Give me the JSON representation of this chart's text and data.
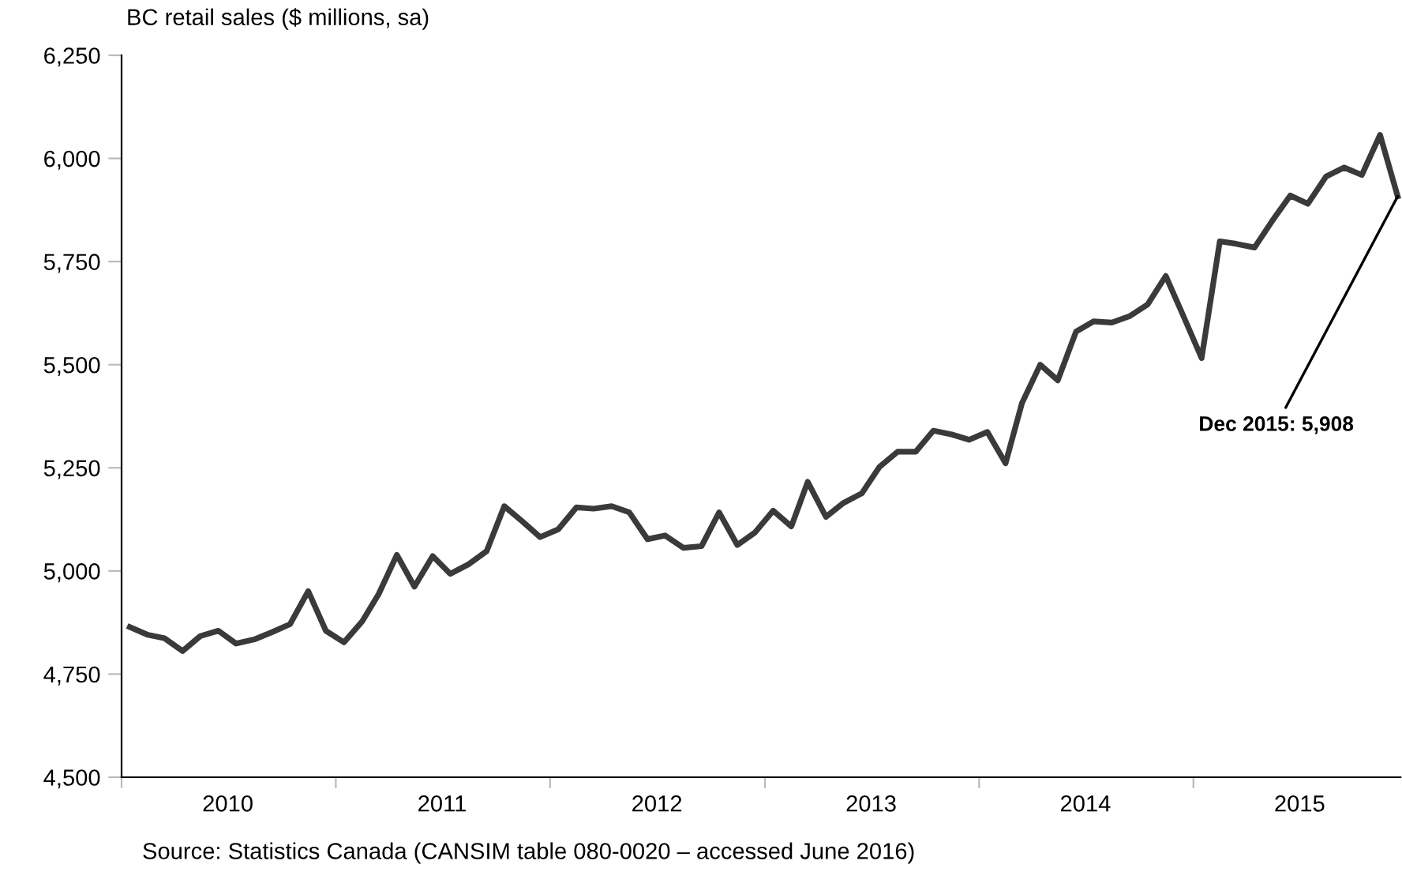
{
  "chart_data": {
    "type": "line",
    "ylabel": "BC retail sales ($ millions, sa)",
    "x": [
      "2010-01-15",
      "2010-02-15",
      "2010-03-15",
      "2010-04-15",
      "2010-05-15",
      "2010-06-15",
      "2010-07-15",
      "2010-08-15",
      "2010-09-15",
      "2010-10-15",
      "2010-11-15",
      "2010-12-15",
      "2011-01-15",
      "2011-02-15",
      "2011-03-15",
      "2011-04-15",
      "2011-05-15",
      "2011-06-15",
      "2011-07-15",
      "2011-08-15",
      "2011-09-15",
      "2011-10-15",
      "2011-11-15",
      "2011-12-15",
      "2012-01-15",
      "2012-02-15",
      "2012-03-15",
      "2012-04-15",
      "2012-05-15",
      "2012-06-15",
      "2012-07-15",
      "2012-08-15",
      "2012-09-15",
      "2012-10-15",
      "2012-11-15",
      "2012-12-15",
      "2013-01-15",
      "2013-02-15",
      "2013-03-15",
      "2013-04-15",
      "2013-05-15",
      "2013-06-15",
      "2013-07-15",
      "2013-08-15",
      "2013-09-15",
      "2013-10-15",
      "2013-11-15",
      "2013-12-15",
      "2014-01-15",
      "2014-02-15",
      "2014-03-15",
      "2014-04-15",
      "2014-05-15",
      "2014-06-15",
      "2014-07-15",
      "2014-08-15",
      "2014-09-15",
      "2014-10-15",
      "2014-11-15",
      "2014-12-15",
      "2015-01-15",
      "2015-02-15",
      "2015-03-15",
      "2015-04-15",
      "2015-05-15",
      "2015-06-15",
      "2015-07-15",
      "2015-08-15",
      "2015-09-15",
      "2015-10-15",
      "2015-11-15",
      "2015-12-15"
    ],
    "series": [
      {
        "color": "#3a3a3a",
        "values": [
          4864,
          4845,
          4837,
          4806,
          4842,
          4855,
          4824,
          4834,
          4852,
          4871,
          4951,
          4855,
          4827,
          4878,
          4944,
          5039,
          4962,
          5036,
          4993,
          5016,
          5048,
          5157,
          5120,
          5082,
          5101,
          5154,
          5151,
          5157,
          5142,
          5077,
          5086,
          5056,
          5060,
          5142,
          5063,
          5093,
          5146,
          5108,
          5216,
          5131,
          5165,
          5188,
          5252,
          5289,
          5289,
          5340,
          5331,
          5318,
          5337,
          5261,
          5407,
          5500,
          5462,
          5580,
          5605,
          5602,
          5618,
          5646,
          5715,
          5618,
          5516,
          5799,
          5793,
          5784,
          5848,
          5910,
          5890,
          5956,
          5978,
          5960,
          6057,
          5908
        ]
      }
    ],
    "xlim": [
      "2010-01-01",
      "2015-12-20"
    ],
    "xticks": [
      {
        "value": "2010-01-01",
        "label": null
      },
      {
        "value": "2010-07-01",
        "label": "2010"
      },
      {
        "value": "2011-01-01",
        "label": null
      },
      {
        "value": "2011-07-01",
        "label": "2011"
      },
      {
        "value": "2012-01-01",
        "label": null
      },
      {
        "value": "2012-07-01",
        "label": "2012"
      },
      {
        "value": "2013-01-01",
        "label": null
      },
      {
        "value": "2013-07-01",
        "label": "2013"
      },
      {
        "value": "2014-01-01",
        "label": null
      },
      {
        "value": "2014-07-01",
        "label": "2014"
      },
      {
        "value": "2015-01-01",
        "label": null
      },
      {
        "value": "2015-07-01",
        "label": "2015"
      }
    ],
    "ylim": [
      4500,
      6250
    ],
    "yticks": [
      {
        "value": 4500,
        "label": "4,500"
      },
      {
        "value": 4750,
        "label": "4,750"
      },
      {
        "value": 5000,
        "label": "5,000"
      },
      {
        "value": 5250,
        "label": "5,250"
      },
      {
        "value": 5500,
        "label": "5,500"
      },
      {
        "value": 5750,
        "label": "5,750"
      },
      {
        "value": 6000,
        "label": "6,000"
      },
      {
        "value": 6250,
        "label": "6,250"
      }
    ],
    "grid": false,
    "marker": "none",
    "line_style": "solid",
    "annotations": [
      {
        "text": "Dec 2015: 5,908",
        "x": "2015-12-15",
        "y": 5908
      },
      "Source: Statistics Canada (CANSIM table 080-0020 – accessed June 2016)"
    ]
  }
}
